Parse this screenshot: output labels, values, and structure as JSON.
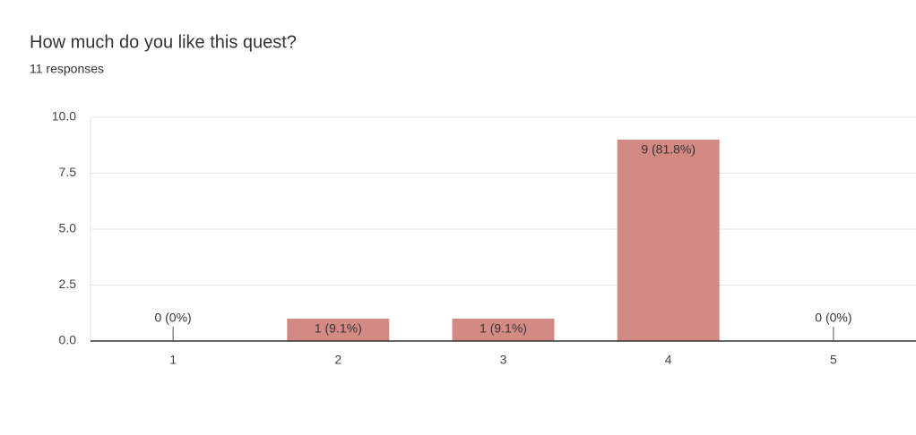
{
  "chart_data": {
    "type": "bar",
    "title": "How much do you like this quest?",
    "subtitle": "11 responses",
    "categories": [
      "1",
      "2",
      "3",
      "4",
      "5"
    ],
    "values": [
      0,
      1,
      1,
      9,
      0
    ],
    "value_labels": [
      "0 (0%)",
      "1 (9.1%)",
      "1 (9.1%)",
      "9 (81.8%)",
      "0 (0%)"
    ],
    "color": "#d48a84",
    "ylim": [
      0,
      10
    ],
    "yticks": [
      {
        "value": 0,
        "label": "0.0"
      },
      2.5,
      {
        "value": 5,
        "label": "5.0"
      },
      7.5,
      {
        "value": 10,
        "label": "10.0"
      }
    ],
    "grid": true
  }
}
